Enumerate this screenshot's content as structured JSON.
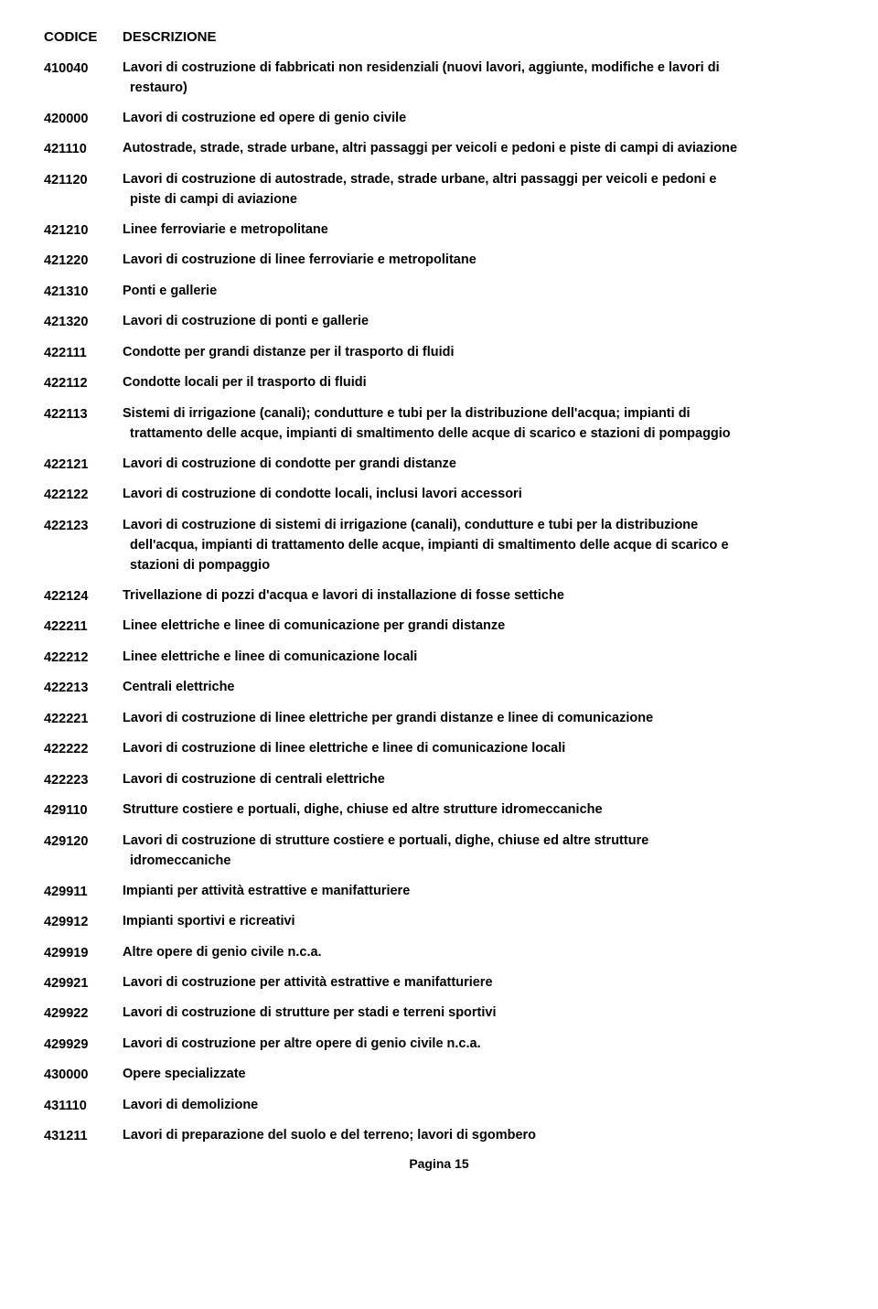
{
  "header": {
    "code": "CODICE",
    "desc": "DESCRIZIONE"
  },
  "rows": [
    {
      "code": "410040",
      "desc": [
        "Lavori di costruzione di fabbricati non residenziali (nuovi lavori, aggiunte, modifiche e lavori di",
        " restauro)"
      ]
    },
    {
      "code": "420000",
      "desc": [
        "Lavori di costruzione ed opere di genio civile"
      ]
    },
    {
      "code": "421110",
      "desc": [
        "Autostrade, strade, strade urbane, altri passaggi per veicoli e pedoni e piste di campi di aviazione"
      ]
    },
    {
      "code": "421120",
      "desc": [
        "Lavori di costruzione di autostrade, strade, strade urbane, altri passaggi per veicoli e pedoni e",
        " piste di campi di aviazione"
      ]
    },
    {
      "code": "421210",
      "desc": [
        "Linee ferroviarie e metropolitane"
      ]
    },
    {
      "code": "421220",
      "desc": [
        "Lavori di costruzione di linee ferroviarie e metropolitane"
      ]
    },
    {
      "code": "421310",
      "desc": [
        "Ponti e gallerie"
      ]
    },
    {
      "code": "421320",
      "desc": [
        "Lavori di costruzione di ponti e gallerie"
      ]
    },
    {
      "code": "422111",
      "desc": [
        "Condotte per grandi distanze per il trasporto di fluidi"
      ]
    },
    {
      "code": "422112",
      "desc": [
        "Condotte locali per il trasporto di fluidi"
      ]
    },
    {
      "code": "422113",
      "desc": [
        "Sistemi di irrigazione (canali); condutture e tubi per la distribuzione dell'acqua; impianti di",
        " trattamento delle acque, impianti di smaltimento delle acque di scarico e stazioni di pompaggio"
      ]
    },
    {
      "code": "422121",
      "desc": [
        "Lavori di costruzione di condotte per grandi distanze"
      ]
    },
    {
      "code": "422122",
      "desc": [
        "Lavori di costruzione di condotte locali, inclusi lavori accessori"
      ]
    },
    {
      "code": "422123",
      "desc": [
        "Lavori di costruzione di sistemi di irrigazione (canali), condutture e tubi per la distribuzione",
        " dell'acqua, impianti di trattamento delle acque, impianti di smaltimento delle acque di scarico e",
        " stazioni di pompaggio"
      ]
    },
    {
      "code": "422124",
      "desc": [
        "Trivellazione di pozzi d'acqua e lavori di installazione di fosse settiche"
      ]
    },
    {
      "code": "422211",
      "desc": [
        "Linee elettriche e linee di comunicazione per grandi distanze"
      ]
    },
    {
      "code": "422212",
      "desc": [
        "Linee elettriche e linee di comunicazione locali"
      ]
    },
    {
      "code": "422213",
      "desc": [
        "Centrali elettriche"
      ]
    },
    {
      "code": "422221",
      "desc": [
        "Lavori di costruzione di linee elettriche per grandi distanze e linee di comunicazione"
      ]
    },
    {
      "code": "422222",
      "desc": [
        "Lavori di costruzione di linee elettriche e linee di comunicazione locali"
      ]
    },
    {
      "code": "422223",
      "desc": [
        "Lavori di costruzione di centrali elettriche"
      ]
    },
    {
      "code": "429110",
      "desc": [
        "Strutture costiere e portuali, dighe, chiuse ed altre strutture idromeccaniche"
      ]
    },
    {
      "code": "429120",
      "desc": [
        "Lavori di costruzione di strutture costiere e portuali, dighe, chiuse ed altre strutture",
        " idromeccaniche"
      ]
    },
    {
      "code": "429911",
      "desc": [
        "Impianti per attività estrattive e manifatturiere"
      ]
    },
    {
      "code": "429912",
      "desc": [
        "Impianti sportivi e ricreativi"
      ]
    },
    {
      "code": "429919",
      "desc": [
        "Altre opere di genio civile n.c.a."
      ]
    },
    {
      "code": "429921",
      "desc": [
        "Lavori di costruzione per attività estrattive e manifatturiere"
      ]
    },
    {
      "code": "429922",
      "desc": [
        "Lavori di costruzione di strutture per stadi e terreni sportivi"
      ]
    },
    {
      "code": "429929",
      "desc": [
        "Lavori di costruzione per altre opere di genio civile n.c.a."
      ]
    },
    {
      "code": "430000",
      "desc": [
        "Opere specializzate"
      ]
    },
    {
      "code": "431110",
      "desc": [
        "Lavori di demolizione"
      ]
    },
    {
      "code": "431211",
      "desc": [
        "Lavori di preparazione del suolo e del terreno; lavori di sgombero"
      ]
    }
  ],
  "footer": "Pagina 15"
}
